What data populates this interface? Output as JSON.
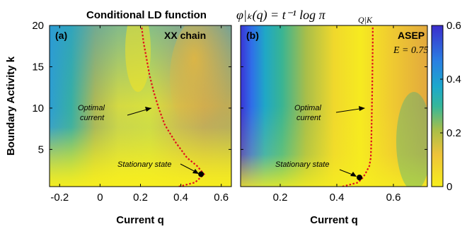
{
  "figure": {
    "title_text": "Conditional LD function",
    "title_math": "φ|ₖ(q) = t⁻¹ log π",
    "title_math_sub": "Q|K",
    "ylabel": "Boundary Activity k",
    "colors": {
      "low": "#f5ec1e",
      "mid": "#e8bb3b",
      "mid2": "#2cb5a8",
      "high": "#3a2fd0",
      "curve": "#e0101e"
    }
  },
  "colorbar": {
    "ticks": [
      "0",
      "0.2",
      "0.4",
      "0.6"
    ],
    "values": [
      0,
      0.2,
      0.4,
      0.6
    ],
    "range": [
      0,
      0.6
    ]
  },
  "chart_data": [
    {
      "type": "heatmap",
      "panel": "(a)",
      "model": "XX chain",
      "xlabel": "Current q",
      "ylabel": "Boundary Activity k",
      "xlim": [
        -0.25,
        0.65
      ],
      "ylim": [
        0.5,
        20
      ],
      "xticks": [
        -0.2,
        0,
        0.2,
        0.4,
        0.6
      ],
      "xtick_labels": [
        "-0.2",
        "0",
        "0.2",
        "0.4",
        "0.6"
      ],
      "yticks": [
        5,
        10,
        15,
        20
      ],
      "ytick_labels": [
        "5",
        "10",
        "15",
        "20"
      ],
      "optimal_current": {
        "k": [
          0.5,
          1.0,
          2.0,
          3.0,
          4.0,
          6.0,
          8.0,
          10.0,
          12.0,
          14.0,
          16.0,
          18.0,
          20.0
        ],
        "q": [
          0.39,
          0.47,
          0.515,
          0.48,
          0.43,
          0.37,
          0.32,
          0.29,
          0.265,
          0.245,
          0.23,
          0.215,
          0.205
        ]
      },
      "stationary_state": {
        "q": 0.5,
        "k": 2.0
      },
      "annotations": {
        "optimal_line1": "Optimal",
        "optimal_line2": "current",
        "stationary": "Stationary state"
      }
    },
    {
      "type": "heatmap",
      "panel": "(b)",
      "model": "ASEP",
      "parameter": "E = 0.75",
      "xlabel": "Current q",
      "xlim": [
        0.06,
        0.72
      ],
      "ylim": [
        0.5,
        20
      ],
      "xticks": [
        0.2,
        0.4,
        0.6
      ],
      "xtick_labels": [
        "0.2",
        "0.4",
        "0.6"
      ],
      "yticks": [
        5,
        10,
        15,
        20
      ],
      "optimal_current": {
        "k": [
          0.5,
          1.0,
          1.5,
          2.0,
          3.0,
          4.0,
          6.0,
          8.0,
          10.0,
          12.0,
          15.0,
          18.0,
          20.0
        ],
        "q": [
          0.42,
          0.475,
          0.49,
          0.5,
          0.515,
          0.52,
          0.522,
          0.523,
          0.524,
          0.525,
          0.526,
          0.527,
          0.527
        ]
      },
      "stationary_state": {
        "q": 0.48,
        "k": 1.6
      },
      "annotations": {
        "optimal_line1": "Optimal",
        "optimal_line2": "current",
        "stationary": "Stationary state"
      }
    }
  ]
}
